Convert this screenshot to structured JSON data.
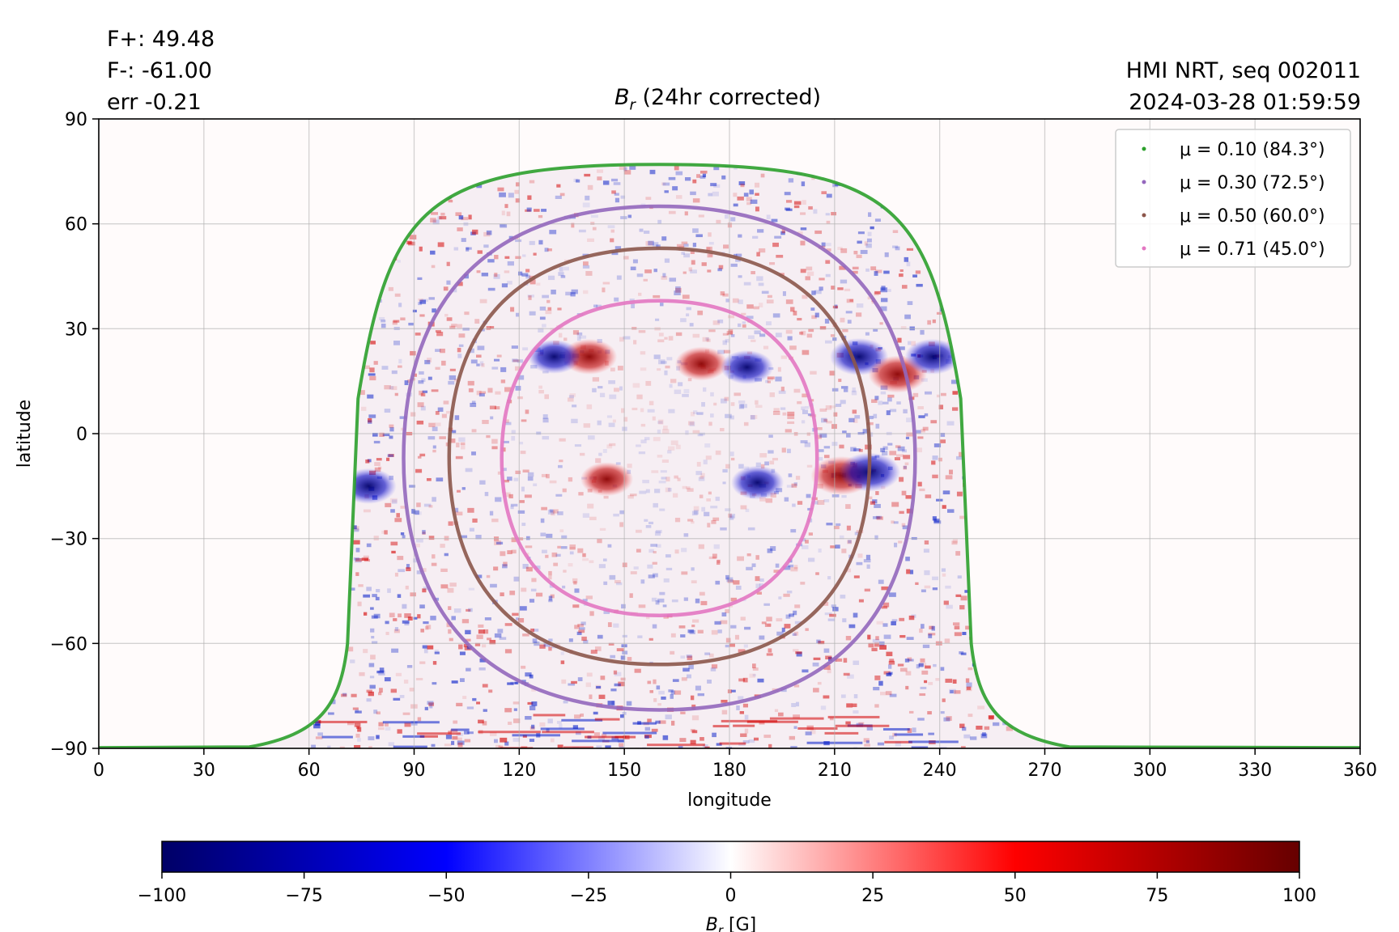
{
  "header": {
    "stats": [
      "F+: 49.48",
      "F-: -61.00",
      "err -0.21"
    ],
    "source": "HMI NRT, seq 002011",
    "timestamp": "2024-03-28 01:59:59"
  },
  "chart_data": [
    {
      "type": "heatmap",
      "title_symbol": "B",
      "title_subscript": "r",
      "title_rest": " (24hr corrected)",
      "xlabel": "longitude",
      "ylabel": "latitude",
      "xlim": [
        0,
        360
      ],
      "ylim": [
        -90,
        90
      ],
      "x_ticks": [
        0,
        30,
        60,
        90,
        120,
        150,
        180,
        210,
        240,
        270,
        300,
        330,
        360
      ],
      "y_ticks": [
        90,
        60,
        30,
        0,
        -30,
        -60,
        -90
      ],
      "y_tick_labels": [
        "90",
        "60",
        "30",
        "0",
        "−30",
        "−60",
        "−90"
      ],
      "grid": true,
      "legend_position": "top-right",
      "series": [
        {
          "name": "μ = 0.10 (84.3°)",
          "color": "#2ca02c"
        },
        {
          "name": "μ = 0.30 (72.5°)",
          "color": "#9467bd"
        },
        {
          "name": "μ = 0.50 (60.0°)",
          "color": "#8c564b"
        },
        {
          "name": "μ = 0.71 (45.0°)",
          "color": "#e377c2"
        }
      ],
      "mu_contours": [
        {
          "mu": 0.1,
          "center_lon": 160,
          "half_width_lon": 89,
          "lat_top": 77,
          "lat_bottom": -90,
          "bottom_skirt_lon": 90
        },
        {
          "mu": 0.3,
          "center_lon": 160,
          "half_width_lon": 73,
          "lat_top": 65,
          "lat_bottom": -79
        },
        {
          "mu": 0.5,
          "center_lon": 160,
          "half_width_lon": 60,
          "lat_top": 53,
          "lat_bottom": -66
        },
        {
          "mu": 0.71,
          "center_lon": 160,
          "half_width_lon": 45,
          "lat_top": 38,
          "lat_bottom": -52
        }
      ],
      "active_regions": [
        {
          "lon": 212,
          "lat": -12,
          "polarity": "positive",
          "strength": 100
        },
        {
          "lon": 220,
          "lat": -11,
          "polarity": "negative",
          "strength": 100
        },
        {
          "lon": 217,
          "lat": 22,
          "polarity": "negative",
          "strength": 90
        },
        {
          "lon": 228,
          "lat": 17,
          "polarity": "positive",
          "strength": 90
        },
        {
          "lon": 238,
          "lat": 22,
          "polarity": "negative",
          "strength": 80
        },
        {
          "lon": 140,
          "lat": 22,
          "polarity": "positive",
          "strength": 80
        },
        {
          "lon": 130,
          "lat": 22,
          "polarity": "negative",
          "strength": 70
        },
        {
          "lon": 172,
          "lat": 20,
          "polarity": "positive",
          "strength": 70
        },
        {
          "lon": 185,
          "lat": 19,
          "polarity": "negative",
          "strength": 70
        },
        {
          "lon": 77,
          "lat": -15,
          "polarity": "negative",
          "strength": 80
        },
        {
          "lon": 188,
          "lat": -14,
          "polarity": "negative",
          "strength": 70
        },
        {
          "lon": 145,
          "lat": -13,
          "polarity": "positive",
          "strength": 70
        }
      ]
    },
    {
      "type": "colorbar",
      "label_symbol": "B",
      "label_subscript": "r",
      "label_rest": " [G]",
      "range": [
        -100,
        100
      ],
      "ticks": [
        -100,
        -75,
        -50,
        -25,
        0,
        25,
        50,
        75,
        100
      ],
      "tick_labels": [
        "−100",
        "−75",
        "−50",
        "−25",
        "0",
        "25",
        "50",
        "75",
        "100"
      ],
      "colormap": [
        "#000066",
        "#0000ff",
        "#ffffff",
        "#ff0000",
        "#660000"
      ]
    }
  ]
}
